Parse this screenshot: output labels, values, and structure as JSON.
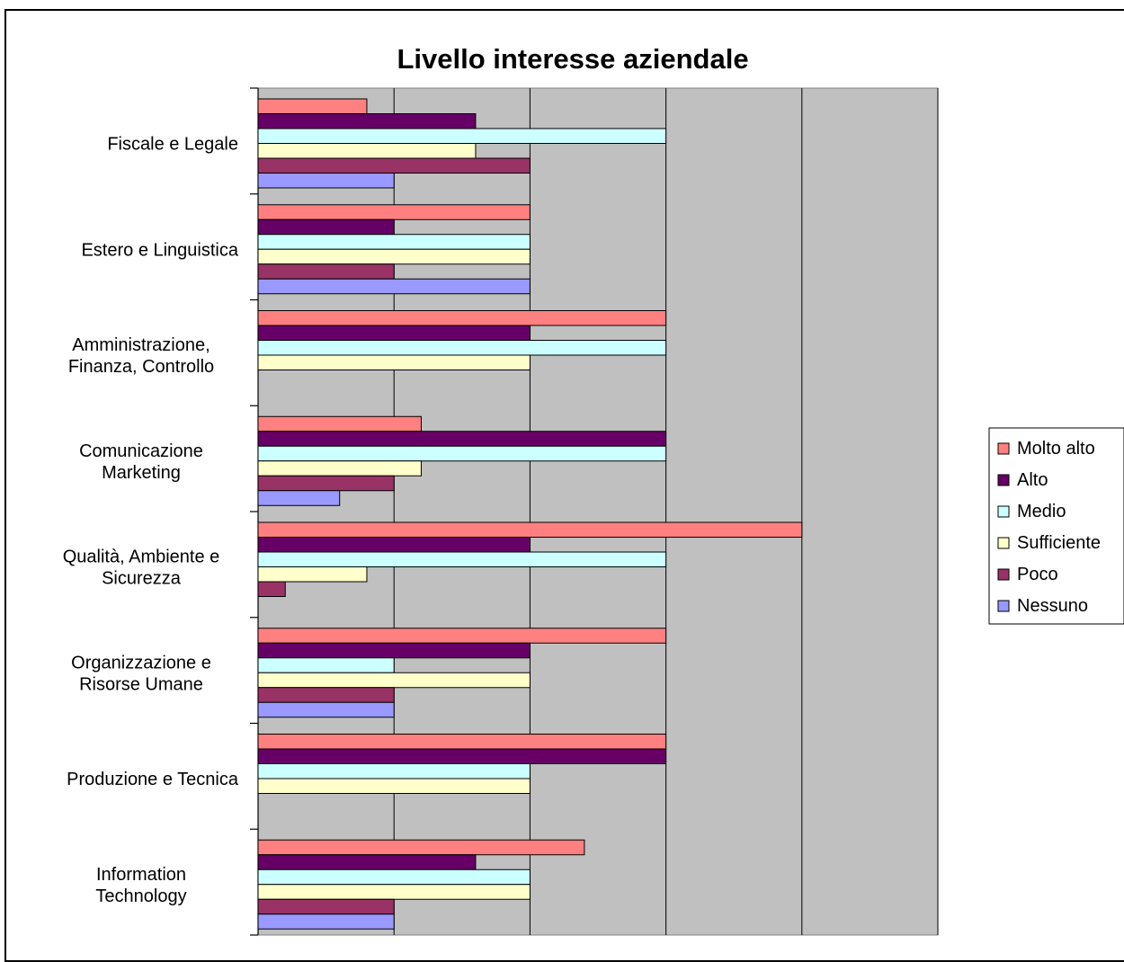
{
  "chart_data": {
    "type": "bar",
    "orientation": "horizontal",
    "title": "Livello interesse aziendale",
    "categories": [
      [
        "Fiscale e Legale"
      ],
      [
        "Estero e Linguistica"
      ],
      [
        "Amministrazione,",
        "Finanza, Controllo"
      ],
      [
        "Comunicazione",
        "Marketing"
      ],
      [
        "Qualità, Ambiente e",
        "Sicurezza"
      ],
      [
        "Organizzazione e",
        "Risorse Umane"
      ],
      [
        "Produzione e Tecnica"
      ],
      [
        "Information",
        "Technology"
      ]
    ],
    "series": [
      {
        "name": "Molto alto",
        "color": "#FF8080",
        "values": [
          0.8,
          2,
          3,
          1.2,
          4,
          3,
          3,
          2.4
        ]
      },
      {
        "name": "Alto",
        "color": "#660066",
        "values": [
          1.6,
          1,
          2,
          3,
          2,
          2,
          3,
          1.6
        ]
      },
      {
        "name": "Medio",
        "color": "#CCFFFF",
        "values": [
          3,
          2,
          3,
          3,
          3,
          1,
          2,
          2
        ]
      },
      {
        "name": "Sufficiente",
        "color": "#FFFFCC",
        "values": [
          1.6,
          2,
          2,
          1.2,
          0.8,
          2,
          2,
          2
        ]
      },
      {
        "name": "Poco",
        "color": "#993366",
        "values": [
          2,
          1,
          0,
          1,
          0.2,
          1,
          0,
          1
        ]
      },
      {
        "name": "Nessuno",
        "color": "#9999FF",
        "values": [
          1,
          2,
          0,
          0.6,
          0,
          1,
          0,
          1
        ]
      }
    ],
    "xlim": [
      0,
      5
    ],
    "grid": true,
    "plot_background": "#C0C0C0",
    "legend_position": "right"
  }
}
